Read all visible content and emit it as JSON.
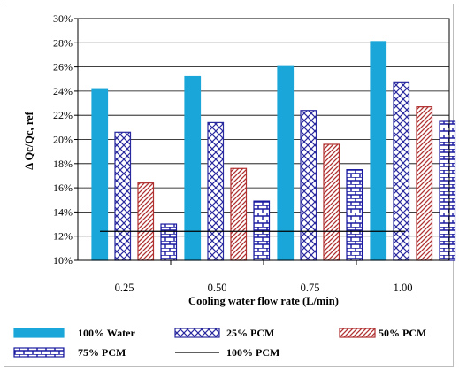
{
  "chart_data": {
    "type": "bar",
    "title": "",
    "xlabel": "Cooling water flow rate (L/min)",
    "ylabel": "Δ Qc/Qc, ref",
    "categories": [
      "0.25",
      "0.50",
      "0.75",
      "1.00"
    ],
    "ylim": [
      10,
      30
    ],
    "yticks": [
      "10%",
      "12%",
      "14%",
      "16%",
      "18%",
      "20%",
      "22%",
      "24%",
      "26%",
      "28%",
      "30%"
    ],
    "grid": "horizontal",
    "legend_position": "bottom",
    "series": [
      {
        "name": "100% Water",
        "values": [
          24.2,
          25.2,
          26.1,
          28.1
        ],
        "color": "#1aa6d8",
        "pattern": "solid"
      },
      {
        "name": "25% PCM",
        "values": [
          20.6,
          21.4,
          22.4,
          24.7
        ],
        "color": "#2a2aa0",
        "pattern": "diagonal-cross"
      },
      {
        "name": "50% PCM",
        "values": [
          16.4,
          17.6,
          19.6,
          22.7
        ],
        "color": "#b03030",
        "pattern": "diagonal"
      },
      {
        "name": "75% PCM",
        "values": [
          13.0,
          14.9,
          17.5,
          21.5
        ],
        "color": "#1a1aa0",
        "pattern": "brick"
      }
    ],
    "reference_line": {
      "name": "100% PCM",
      "value": 12.4,
      "color": "#000000"
    }
  }
}
